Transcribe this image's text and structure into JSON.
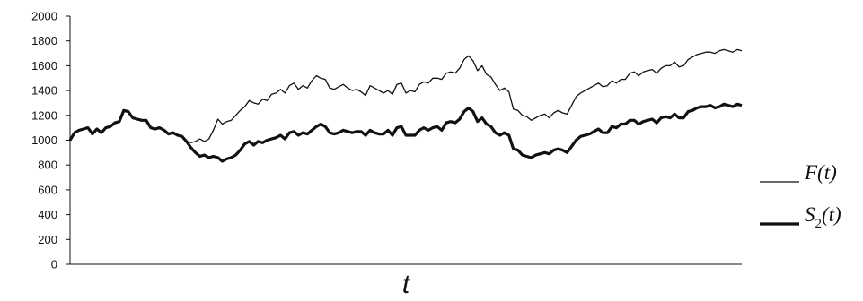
{
  "chart_data": {
    "type": "line",
    "title": "",
    "xlabel": "t",
    "ylabel": "",
    "ylim": [
      0,
      2000
    ],
    "yticks": [
      "0",
      "200",
      "400",
      "600",
      "800",
      "1000",
      "1200",
      "1400",
      "1600",
      "1800",
      "2000"
    ],
    "grid": false,
    "legend": "right",
    "series": [
      {
        "name": "F(t)",
        "legend": {
          "main": "F(t)"
        },
        "stroke": "thin",
        "color": "#111111",
        "x": [
          0,
          2,
          4,
          6,
          8,
          10,
          12,
          14,
          16,
          18,
          20,
          22,
          24,
          26,
          28,
          30,
          32,
          34,
          36,
          38,
          40,
          42,
          44,
          46,
          48,
          50,
          52,
          54,
          56,
          58,
          60,
          62,
          64,
          66,
          68,
          70,
          72,
          74,
          76,
          78,
          80,
          82,
          84,
          86,
          88,
          90,
          92,
          94,
          96,
          98,
          100,
          102,
          104,
          106,
          108,
          110,
          112,
          114,
          116,
          118,
          120,
          122,
          124,
          126,
          128,
          130,
          132,
          134,
          136,
          138,
          140,
          142,
          144,
          146,
          148,
          150,
          152,
          154,
          156,
          158,
          160,
          162,
          164,
          166,
          168,
          170,
          172,
          174,
          176,
          178,
          180,
          182,
          184,
          186,
          188,
          190,
          192,
          194,
          196,
          198,
          200,
          202,
          204,
          206,
          208,
          210,
          212,
          214,
          216,
          218,
          220,
          222,
          224,
          226,
          228,
          230,
          232,
          234,
          236,
          238,
          240,
          242,
          244,
          246,
          248,
          250,
          252,
          254,
          256,
          258,
          260,
          262,
          264,
          266,
          268,
          270,
          272,
          274,
          276,
          278,
          280,
          282,
          284,
          286,
          288,
          290,
          292,
          294,
          296,
          298,
          300
        ],
        "values": [
          1000,
          1060,
          1080,
          1090,
          1100,
          1050,
          1090,
          1060,
          1100,
          1110,
          1140,
          1150,
          1240,
          1230,
          1180,
          1170,
          1160,
          1160,
          1100,
          1090,
          1100,
          1080,
          1050,
          1060,
          1040,
          1030,
          990,
          980,
          990,
          1010,
          990,
          1010,
          1080,
          1170,
          1130,
          1150,
          1160,
          1200,
          1240,
          1270,
          1320,
          1300,
          1290,
          1330,
          1320,
          1370,
          1380,
          1410,
          1380,
          1440,
          1460,
          1410,
          1440,
          1420,
          1480,
          1520,
          1500,
          1490,
          1420,
          1410,
          1430,
          1450,
          1420,
          1400,
          1410,
          1390,
          1360,
          1440,
          1420,
          1400,
          1380,
          1400,
          1370,
          1450,
          1460,
          1380,
          1400,
          1390,
          1450,
          1470,
          1460,
          1500,
          1500,
          1490,
          1540,
          1550,
          1540,
          1580,
          1650,
          1680,
          1640,
          1560,
          1600,
          1530,
          1510,
          1450,
          1400,
          1420,
          1390,
          1250,
          1240,
          1200,
          1190,
          1160,
          1180,
          1200,
          1210,
          1180,
          1220,
          1240,
          1220,
          1210,
          1280,
          1350,
          1380,
          1400,
          1420,
          1440,
          1460,
          1430,
          1440,
          1480,
          1460,
          1490,
          1490,
          1540,
          1550,
          1520,
          1550,
          1560,
          1570,
          1540,
          1580,
          1600,
          1600,
          1630,
          1590,
          1600,
          1650,
          1670,
          1690,
          1700,
          1710,
          1710,
          1700,
          1720,
          1730,
          1720,
          1710,
          1730,
          1720
        ]
      },
      {
        "name": "S2(t)",
        "legend": {
          "main": "S",
          "sub": "2",
          "tail": "(t)"
        },
        "stroke": "thick",
        "color": "#111111",
        "x": [
          0,
          2,
          4,
          6,
          8,
          10,
          12,
          14,
          16,
          18,
          20,
          22,
          24,
          26,
          28,
          30,
          32,
          34,
          36,
          38,
          40,
          42,
          44,
          46,
          48,
          50,
          52,
          54,
          56,
          58,
          60,
          62,
          64,
          66,
          68,
          70,
          72,
          74,
          76,
          78,
          80,
          82,
          84,
          86,
          88,
          90,
          92,
          94,
          96,
          98,
          100,
          102,
          104,
          106,
          108,
          110,
          112,
          114,
          116,
          118,
          120,
          122,
          124,
          126,
          128,
          130,
          132,
          134,
          136,
          138,
          140,
          142,
          144,
          146,
          148,
          150,
          152,
          154,
          156,
          158,
          160,
          162,
          164,
          166,
          168,
          170,
          172,
          174,
          176,
          178,
          180,
          182,
          184,
          186,
          188,
          190,
          192,
          194,
          196,
          198,
          200,
          202,
          204,
          206,
          208,
          210,
          212,
          214,
          216,
          218,
          220,
          222,
          224,
          226,
          228,
          230,
          232,
          234,
          236,
          238,
          240,
          242,
          244,
          246,
          248,
          250,
          252,
          254,
          256,
          258,
          260,
          262,
          264,
          266,
          268,
          270,
          272,
          274,
          276,
          278,
          280,
          282,
          284,
          286,
          288,
          290,
          292,
          294,
          296,
          298,
          300
        ],
        "values": [
          1000,
          1060,
          1080,
          1090,
          1100,
          1050,
          1090,
          1060,
          1100,
          1110,
          1140,
          1150,
          1240,
          1230,
          1180,
          1170,
          1160,
          1160,
          1100,
          1090,
          1100,
          1080,
          1050,
          1060,
          1040,
          1030,
          990,
          940,
          900,
          870,
          880,
          860,
          870,
          860,
          830,
          850,
          860,
          880,
          920,
          970,
          990,
          960,
          990,
          980,
          1000,
          1010,
          1020,
          1040,
          1010,
          1060,
          1070,
          1040,
          1060,
          1050,
          1080,
          1110,
          1130,
          1110,
          1060,
          1050,
          1060,
          1080,
          1070,
          1060,
          1070,
          1070,
          1040,
          1080,
          1060,
          1050,
          1050,
          1080,
          1040,
          1100,
          1110,
          1040,
          1040,
          1040,
          1080,
          1100,
          1080,
          1100,
          1110,
          1080,
          1140,
          1150,
          1140,
          1170,
          1230,
          1260,
          1230,
          1150,
          1180,
          1130,
          1110,
          1060,
          1040,
          1060,
          1040,
          930,
          920,
          880,
          870,
          860,
          880,
          890,
          900,
          890,
          920,
          930,
          920,
          900,
          950,
          1000,
          1030,
          1040,
          1050,
          1070,
          1090,
          1060,
          1060,
          1110,
          1100,
          1130,
          1130,
          1160,
          1160,
          1130,
          1150,
          1160,
          1170,
          1140,
          1180,
          1190,
          1180,
          1210,
          1180,
          1180,
          1230,
          1240,
          1260,
          1270,
          1270,
          1280,
          1260,
          1270,
          1290,
          1280,
          1270,
          1290,
          1280
        ]
      }
    ]
  }
}
